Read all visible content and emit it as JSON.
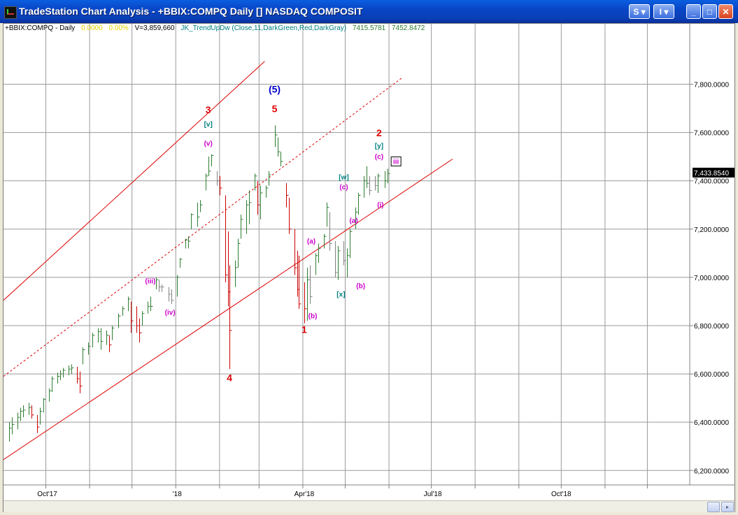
{
  "window": {
    "title": "TradeStation Chart Analysis - +BBIX:COMPQ Daily [] NASDAQ COMPOSIT",
    "buttons": {
      "s_label": "S",
      "i_label": "I"
    }
  },
  "status": {
    "symbol": "+BBIX:COMPQ - Daily",
    "change": "0.0000",
    "pct_change": "0.00%",
    "volume": "V=3,859,660",
    "indicator": "JK_TrendUpDw (Close,11,DarkGreen,Red,DarkGray)",
    "value1": "7415.5781",
    "value2": "7452.8472"
  },
  "colors": {
    "up": "#2e7d32",
    "down": "#cc0000",
    "neutral": "#808080",
    "channel": "#dd0000",
    "magenta": "#cc00cc",
    "teal": "#008080",
    "blue": "#0000cc",
    "red_label": "#dd0000"
  },
  "chart_data": {
    "type": "bar",
    "title": "",
    "y_axis": {
      "ticks": [
        "7,800.0000",
        "7,600.0000",
        "7,400.0000",
        "7,200.0000",
        "7,000.0000",
        "6,800.0000",
        "6,600.0000",
        "6,400.0000",
        "6,200.0000"
      ],
      "tick_values": [
        7800,
        7600,
        7400,
        7200,
        7000,
        6800,
        6600,
        6400,
        6200
      ],
      "ylim": [
        6140,
        8010
      ],
      "last_price": "7,433.8540",
      "last_value": 7433.854
    },
    "x_axis": {
      "ticks": [
        "Oct'17",
        "'18",
        "Apr'18",
        "Jul'18",
        "Oct'18"
      ],
      "tick_dates": [
        "2017-10-02",
        "2018-01-02",
        "2018-04-02",
        "2018-07-02",
        "2018-10-01"
      ],
      "xlim": [
        "2017-09-01",
        "2018-12-31"
      ]
    },
    "grid": true,
    "channel_lines": [
      {
        "style": "solid",
        "points": [
          [
            "2017-09-01",
            6905
          ],
          [
            "2018-03-05",
            7895
          ]
        ]
      },
      {
        "style": "dashed",
        "points": [
          [
            "2017-09-01",
            6590
          ],
          [
            "2018-06-11",
            7830
          ]
        ]
      },
      {
        "style": "solid",
        "points": [
          [
            "2017-09-01",
            6245
          ],
          [
            "2018-07-16",
            7490
          ]
        ]
      }
    ],
    "wave_labels": [
      {
        "text": "3",
        "date": "2018-01-24",
        "y": 7680,
        "color": "red_label",
        "bold": true
      },
      {
        "text": "[v]",
        "date": "2018-01-24",
        "y": 7625,
        "color": "teal",
        "bold": true
      },
      {
        "text": "(v)",
        "date": "2018-01-24",
        "y": 7545,
        "color": "magenta",
        "bold": true
      },
      {
        "text": "(5)",
        "date": "2018-03-12",
        "y": 7765,
        "color": "blue",
        "bold": true
      },
      {
        "text": "5",
        "date": "2018-03-12",
        "y": 7685,
        "color": "red_label",
        "bold": true
      },
      {
        "text": "(iii)",
        "date": "2017-12-14",
        "y": 6975,
        "color": "magenta",
        "bold": true
      },
      {
        "text": "(iv)",
        "date": "2017-12-28",
        "y": 6845,
        "color": "magenta",
        "bold": true
      },
      {
        "text": "4",
        "date": "2018-02-08",
        "y": 6570,
        "color": "red_label",
        "bold": true
      },
      {
        "text": "(a)",
        "date": "2018-04-07",
        "y": 7140,
        "color": "magenta",
        "bold": true
      },
      {
        "text": "(b)",
        "date": "2018-04-08",
        "y": 6830,
        "color": "magenta",
        "bold": true
      },
      {
        "text": "1",
        "date": "2018-04-02",
        "y": 6770,
        "color": "red_label",
        "bold": true
      },
      {
        "text": "[w]",
        "date": "2018-04-30",
        "y": 7405,
        "color": "teal",
        "bold": true
      },
      {
        "text": "(c)",
        "date": "2018-04-30",
        "y": 7365,
        "color": "magenta",
        "bold": true
      },
      {
        "text": "[x]",
        "date": "2018-04-28",
        "y": 6920,
        "color": "teal",
        "bold": true
      },
      {
        "text": "(a)",
        "date": "2018-05-07",
        "y": 7225,
        "color": "magenta",
        "bold": true
      },
      {
        "text": "(b)",
        "date": "2018-05-12",
        "y": 6955,
        "color": "magenta",
        "bold": true
      },
      {
        "text": "2",
        "date": "2018-05-25",
        "y": 7585,
        "color": "red_label",
        "bold": true
      },
      {
        "text": "[y]",
        "date": "2018-05-25",
        "y": 7535,
        "color": "teal",
        "bold": true
      },
      {
        "text": "(c)",
        "date": "2018-05-25",
        "y": 7490,
        "color": "magenta",
        "bold": true
      },
      {
        "text": "(i)",
        "date": "2018-05-26",
        "y": 7290,
        "color": "magenta",
        "bold": true
      },
      {
        "text": "iii",
        "date": "2018-06-06",
        "y": 7470,
        "color": "magenta",
        "bold": true,
        "boxed": true
      }
    ],
    "series": [
      {
        "date": "2017-09-05",
        "h": 6400,
        "l": 6320,
        "c": 6375,
        "t": "up"
      },
      {
        "date": "2017-09-07",
        "h": 6420,
        "l": 6350,
        "c": 6390,
        "t": "up"
      },
      {
        "date": "2017-09-11",
        "h": 6440,
        "l": 6370,
        "c": 6420,
        "t": "up"
      },
      {
        "date": "2017-09-13",
        "h": 6460,
        "l": 6405,
        "c": 6445,
        "t": "up"
      },
      {
        "date": "2017-09-15",
        "h": 6470,
        "l": 6420,
        "c": 6450,
        "t": "up"
      },
      {
        "date": "2017-09-19",
        "h": 6480,
        "l": 6430,
        "c": 6460,
        "t": "up"
      },
      {
        "date": "2017-09-21",
        "h": 6470,
        "l": 6415,
        "c": 6430,
        "t": "down"
      },
      {
        "date": "2017-09-25",
        "h": 6430,
        "l": 6355,
        "c": 6380,
        "t": "down"
      },
      {
        "date": "2017-09-27",
        "h": 6460,
        "l": 6390,
        "c": 6445,
        "t": "up"
      },
      {
        "date": "2017-09-29",
        "h": 6500,
        "l": 6440,
        "c": 6495,
        "t": "up"
      },
      {
        "date": "2017-10-03",
        "h": 6540,
        "l": 6485,
        "c": 6530,
        "t": "up"
      },
      {
        "date": "2017-10-05",
        "h": 6590,
        "l": 6525,
        "c": 6580,
        "t": "up"
      },
      {
        "date": "2017-10-09",
        "h": 6605,
        "l": 6560,
        "c": 6590,
        "t": "up"
      },
      {
        "date": "2017-10-11",
        "h": 6615,
        "l": 6575,
        "c": 6600,
        "t": "up"
      },
      {
        "date": "2017-10-13",
        "h": 6625,
        "l": 6585,
        "c": 6615,
        "t": "up"
      },
      {
        "date": "2017-10-17",
        "h": 6635,
        "l": 6595,
        "c": 6620,
        "t": "up"
      },
      {
        "date": "2017-10-19",
        "h": 6640,
        "l": 6600,
        "c": 6625,
        "t": "up"
      },
      {
        "date": "2017-10-23",
        "h": 6630,
        "l": 6560,
        "c": 6580,
        "t": "down"
      },
      {
        "date": "2017-10-25",
        "h": 6610,
        "l": 6520,
        "c": 6550,
        "t": "down"
      },
      {
        "date": "2017-10-27",
        "h": 6710,
        "l": 6640,
        "c": 6700,
        "t": "up"
      },
      {
        "date": "2017-10-31",
        "h": 6730,
        "l": 6680,
        "c": 6715,
        "t": "up"
      },
      {
        "date": "2017-11-03",
        "h": 6770,
        "l": 6710,
        "c": 6760,
        "t": "up"
      },
      {
        "date": "2017-11-07",
        "h": 6790,
        "l": 6730,
        "c": 6775,
        "t": "up"
      },
      {
        "date": "2017-11-09",
        "h": 6790,
        "l": 6700,
        "c": 6735,
        "t": "up"
      },
      {
        "date": "2017-11-13",
        "h": 6780,
        "l": 6720,
        "c": 6760,
        "t": "up"
      },
      {
        "date": "2017-11-15",
        "h": 6760,
        "l": 6690,
        "c": 6720,
        "t": "down"
      },
      {
        "date": "2017-11-17",
        "h": 6800,
        "l": 6740,
        "c": 6790,
        "t": "up"
      },
      {
        "date": "2017-11-21",
        "h": 6850,
        "l": 6790,
        "c": 6840,
        "t": "up"
      },
      {
        "date": "2017-11-24",
        "h": 6880,
        "l": 6840,
        "c": 6870,
        "t": "up"
      },
      {
        "date": "2017-11-28",
        "h": 6920,
        "l": 6860,
        "c": 6910,
        "t": "up"
      },
      {
        "date": "2017-11-30",
        "h": 6900,
        "l": 6770,
        "c": 6820,
        "t": "down"
      },
      {
        "date": "2017-12-04",
        "h": 6880,
        "l": 6770,
        "c": 6800,
        "t": "down"
      },
      {
        "date": "2017-12-06",
        "h": 6830,
        "l": 6730,
        "c": 6770,
        "t": "down"
      },
      {
        "date": "2017-12-08",
        "h": 6860,
        "l": 6800,
        "c": 6850,
        "t": "up"
      },
      {
        "date": "2017-12-12",
        "h": 6900,
        "l": 6850,
        "c": 6880,
        "t": "up"
      },
      {
        "date": "2017-12-14",
        "h": 6920,
        "l": 6860,
        "c": 6880,
        "t": "up"
      },
      {
        "date": "2017-12-18",
        "h": 7000,
        "l": 6950,
        "c": 6990,
        "t": "up"
      },
      {
        "date": "2017-12-20",
        "h": 6990,
        "l": 6940,
        "c": 6960,
        "t": "neutral"
      },
      {
        "date": "2017-12-22",
        "h": 6970,
        "l": 6940,
        "c": 6960,
        "t": "neutral"
      },
      {
        "date": "2017-12-27",
        "h": 6960,
        "l": 6900,
        "c": 6930,
        "t": "neutral"
      },
      {
        "date": "2017-12-29",
        "h": 6950,
        "l": 6890,
        "c": 6905,
        "t": "neutral"
      },
      {
        "date": "2018-01-02",
        "h": 7010,
        "l": 6920,
        "c": 7000,
        "t": "up"
      },
      {
        "date": "2018-01-04",
        "h": 7080,
        "l": 7040,
        "c": 7075,
        "t": "up"
      },
      {
        "date": "2018-01-08",
        "h": 7160,
        "l": 7120,
        "c": 7155,
        "t": "up"
      },
      {
        "date": "2018-01-10",
        "h": 7170,
        "l": 7120,
        "c": 7150,
        "t": "up"
      },
      {
        "date": "2018-01-12",
        "h": 7265,
        "l": 7200,
        "c": 7260,
        "t": "up"
      },
      {
        "date": "2018-01-16",
        "h": 7310,
        "l": 7210,
        "c": 7250,
        "t": "up"
      },
      {
        "date": "2018-01-18",
        "h": 7320,
        "l": 7270,
        "c": 7300,
        "t": "up"
      },
      {
        "date": "2018-01-22",
        "h": 7430,
        "l": 7360,
        "c": 7420,
        "t": "up"
      },
      {
        "date": "2018-01-24",
        "h": 7500,
        "l": 7420,
        "c": 7440,
        "t": "up"
      },
      {
        "date": "2018-01-26",
        "h": 7510,
        "l": 7460,
        "c": 7505,
        "t": "up"
      },
      {
        "date": "2018-01-30",
        "h": 7440,
        "l": 7380,
        "c": 7400,
        "t": "neutral"
      },
      {
        "date": "2018-02-01",
        "h": 7420,
        "l": 7340,
        "c": 7370,
        "t": "down"
      },
      {
        "date": "2018-02-05",
        "h": 7340,
        "l": 6980,
        "c": 7010,
        "t": "down"
      },
      {
        "date": "2018-02-07",
        "h": 7190,
        "l": 6880,
        "c": 6940,
        "t": "down"
      },
      {
        "date": "2018-02-08",
        "h": 7050,
        "l": 6620,
        "c": 6780,
        "t": "down"
      },
      {
        "date": "2018-02-12",
        "h": 7070,
        "l": 6960,
        "c": 7040,
        "t": "up"
      },
      {
        "date": "2018-02-14",
        "h": 7160,
        "l": 7040,
        "c": 7140,
        "t": "up"
      },
      {
        "date": "2018-02-16",
        "h": 7260,
        "l": 7160,
        "c": 7240,
        "t": "up"
      },
      {
        "date": "2018-02-20",
        "h": 7320,
        "l": 7180,
        "c": 7300,
        "t": "up"
      },
      {
        "date": "2018-02-22",
        "h": 7360,
        "l": 7220,
        "c": 7310,
        "t": "up"
      },
      {
        "date": "2018-02-26",
        "h": 7430,
        "l": 7360,
        "c": 7420,
        "t": "up"
      },
      {
        "date": "2018-02-28",
        "h": 7400,
        "l": 7260,
        "c": 7300,
        "t": "down"
      },
      {
        "date": "2018-03-02",
        "h": 7380,
        "l": 7240,
        "c": 7350,
        "t": "up"
      },
      {
        "date": "2018-03-06",
        "h": 7380,
        "l": 7330,
        "c": 7370,
        "t": "up"
      },
      {
        "date": "2018-03-08",
        "h": 7440,
        "l": 7380,
        "c": 7425,
        "t": "up"
      },
      {
        "date": "2018-03-12",
        "h": 7630,
        "l": 7540,
        "c": 7590,
        "t": "up"
      },
      {
        "date": "2018-03-14",
        "h": 7580,
        "l": 7500,
        "c": 7520,
        "t": "up"
      },
      {
        "date": "2018-03-16",
        "h": 7520,
        "l": 7460,
        "c": 7480,
        "t": "up"
      },
      {
        "date": "2018-03-20",
        "h": 7390,
        "l": 7290,
        "c": 7340,
        "t": "down"
      },
      {
        "date": "2018-03-22",
        "h": 7330,
        "l": 7180,
        "c": 7200,
        "t": "down"
      },
      {
        "date": "2018-03-26",
        "h": 7200,
        "l": 7010,
        "c": 7040,
        "t": "down"
      },
      {
        "date": "2018-03-28",
        "h": 7110,
        "l": 6920,
        "c": 6950,
        "t": "down"
      },
      {
        "date": "2018-03-29",
        "h": 7090,
        "l": 6870,
        "c": 6890,
        "t": "down"
      },
      {
        "date": "2018-04-02",
        "h": 6980,
        "l": 6810,
        "c": 6870,
        "t": "down"
      },
      {
        "date": "2018-04-04",
        "h": 7040,
        "l": 6820,
        "c": 6990,
        "t": "up"
      },
      {
        "date": "2018-04-06",
        "h": 7050,
        "l": 6890,
        "c": 6920,
        "t": "neutral"
      },
      {
        "date": "2018-04-10",
        "h": 7100,
        "l": 7010,
        "c": 7090,
        "t": "up"
      },
      {
        "date": "2018-04-12",
        "h": 7140,
        "l": 7060,
        "c": 7120,
        "t": "up"
      },
      {
        "date": "2018-04-16",
        "h": 7180,
        "l": 7120,
        "c": 7170,
        "t": "up"
      },
      {
        "date": "2018-04-18",
        "h": 7310,
        "l": 7210,
        "c": 7290,
        "t": "up"
      },
      {
        "date": "2018-04-20",
        "h": 7270,
        "l": 7110,
        "c": 7140,
        "t": "neutral"
      },
      {
        "date": "2018-04-24",
        "h": 7150,
        "l": 7000,
        "c": 7020,
        "t": "neutral"
      },
      {
        "date": "2018-04-26",
        "h": 7130,
        "l": 6990,
        "c": 7110,
        "t": "up"
      },
      {
        "date": "2018-04-30",
        "h": 7150,
        "l": 7050,
        "c": 7070,
        "t": "neutral"
      },
      {
        "date": "2018-05-02",
        "h": 7120,
        "l": 7000,
        "c": 7090,
        "t": "up"
      },
      {
        "date": "2018-05-04",
        "h": 7200,
        "l": 7080,
        "c": 7190,
        "t": "up"
      },
      {
        "date": "2018-05-08",
        "h": 7290,
        "l": 7200,
        "c": 7270,
        "t": "up"
      },
      {
        "date": "2018-05-10",
        "h": 7350,
        "l": 7260,
        "c": 7340,
        "t": "up"
      },
      {
        "date": "2018-05-14",
        "h": 7420,
        "l": 7330,
        "c": 7400,
        "t": "up"
      },
      {
        "date": "2018-05-16",
        "h": 7460,
        "l": 7370,
        "c": 7390,
        "t": "up"
      },
      {
        "date": "2018-05-18",
        "h": 7420,
        "l": 7340,
        "c": 7360,
        "t": "neutral"
      },
      {
        "date": "2018-05-22",
        "h": 7420,
        "l": 7360,
        "c": 7380,
        "t": "neutral"
      },
      {
        "date": "2018-05-24",
        "h": 7430,
        "l": 7350,
        "c": 7420,
        "t": "up"
      },
      {
        "date": "2018-05-29",
        "h": 7440,
        "l": 7370,
        "c": 7400,
        "t": "up"
      },
      {
        "date": "2018-05-31",
        "h": 7450,
        "l": 7390,
        "c": 7430,
        "t": "up"
      }
    ]
  }
}
